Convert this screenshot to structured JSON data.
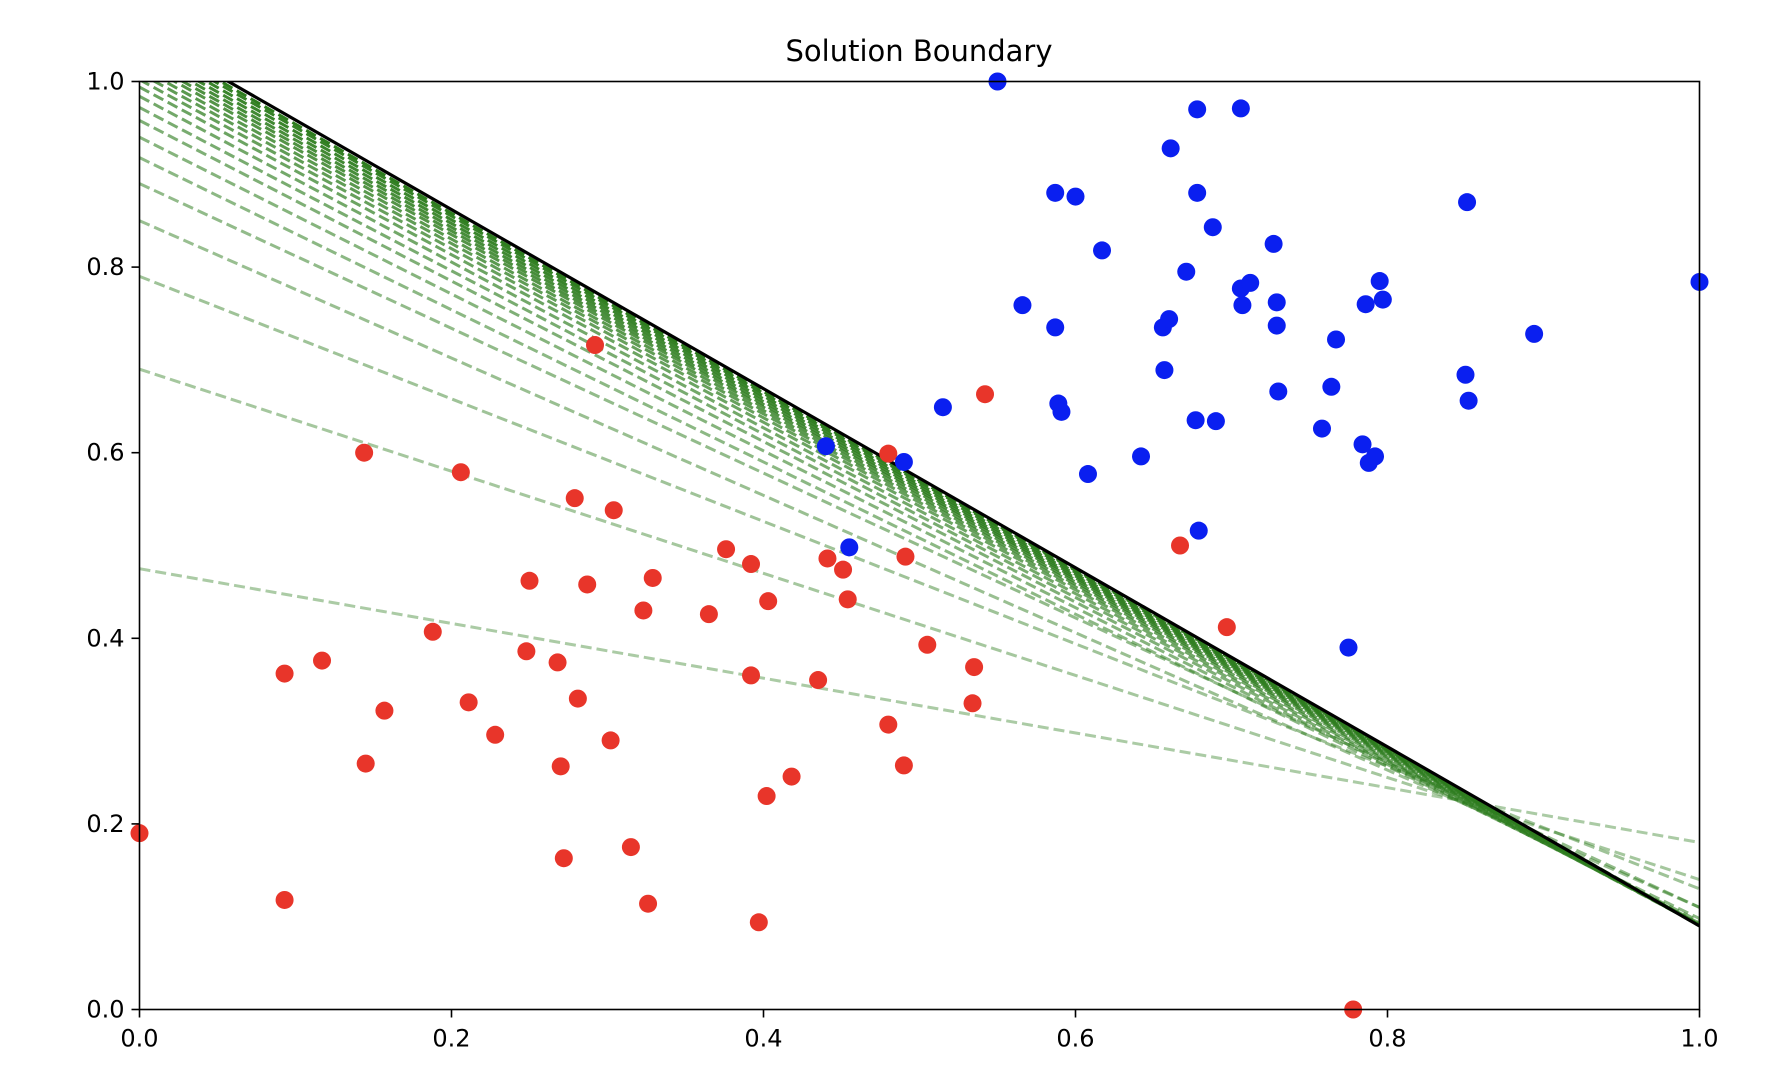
{
  "chart_data": {
    "type": "scatter",
    "title": "Solution Boundary",
    "xlabel": "",
    "ylabel": "",
    "xlim": [
      0.0,
      1.0
    ],
    "ylim": [
      0.0,
      1.0
    ],
    "grid": false,
    "x_ticks": [
      "0.0",
      "0.2",
      "0.4",
      "0.6",
      "0.8",
      "1.0"
    ],
    "y_ticks": [
      "0.0",
      "0.2",
      "0.4",
      "0.6",
      "0.8",
      "1.0"
    ],
    "colors": {
      "red_points": "#e8352a",
      "blue_points": "#0a1ff0",
      "iteration_lines": "#2e7d1f",
      "final_boundary": "#000000"
    },
    "final_boundary": {
      "intercept": 1.055,
      "slope": -0.965
    },
    "iteration_lines": [
      {
        "intercept": 0.475,
        "slope": -0.295
      },
      {
        "intercept": 0.69,
        "slope": -0.55
      },
      {
        "intercept": 0.79,
        "slope": -0.66
      },
      {
        "intercept": 0.85,
        "slope": -0.74
      },
      {
        "intercept": 0.89,
        "slope": -0.78
      },
      {
        "intercept": 0.918,
        "slope": -0.82
      },
      {
        "intercept": 0.94,
        "slope": -0.845
      },
      {
        "intercept": 0.958,
        "slope": -0.865
      },
      {
        "intercept": 0.972,
        "slope": -0.88
      },
      {
        "intercept": 0.984,
        "slope": -0.893
      },
      {
        "intercept": 0.994,
        "slope": -0.903
      },
      {
        "intercept": 1.002,
        "slope": -0.911
      },
      {
        "intercept": 1.009,
        "slope": -0.918
      },
      {
        "intercept": 1.015,
        "slope": -0.924
      },
      {
        "intercept": 1.021,
        "slope": -0.93
      },
      {
        "intercept": 1.026,
        "slope": -0.935
      },
      {
        "intercept": 1.031,
        "slope": -0.94
      },
      {
        "intercept": 1.036,
        "slope": -0.945
      },
      {
        "intercept": 1.041,
        "slope": -0.95
      },
      {
        "intercept": 1.046,
        "slope": -0.955
      },
      {
        "intercept": 1.05,
        "slope": -0.96
      }
    ],
    "series": [
      {
        "values": [
          [
            0.0,
            0.19
          ],
          [
            0.093,
            0.118
          ],
          [
            0.093,
            0.362
          ],
          [
            0.117,
            0.376
          ],
          [
            0.144,
            0.6
          ],
          [
            0.145,
            0.265
          ],
          [
            0.157,
            0.322
          ],
          [
            0.188,
            0.407
          ],
          [
            0.206,
            0.579
          ],
          [
            0.211,
            0.331
          ],
          [
            0.228,
            0.296
          ],
          [
            0.248,
            0.386
          ],
          [
            0.25,
            0.462
          ],
          [
            0.268,
            0.374
          ],
          [
            0.27,
            0.262
          ],
          [
            0.272,
            0.163
          ],
          [
            0.279,
            0.551
          ],
          [
            0.281,
            0.335
          ],
          [
            0.287,
            0.458
          ],
          [
            0.292,
            0.716
          ],
          [
            0.302,
            0.29
          ],
          [
            0.304,
            0.538
          ],
          [
            0.315,
            0.175
          ],
          [
            0.323,
            0.43
          ],
          [
            0.326,
            0.114
          ],
          [
            0.329,
            0.465
          ],
          [
            0.365,
            0.426
          ],
          [
            0.376,
            0.496
          ],
          [
            0.392,
            0.36
          ],
          [
            0.392,
            0.48
          ],
          [
            0.397,
            0.094
          ],
          [
            0.402,
            0.23
          ],
          [
            0.403,
            0.44
          ],
          [
            0.418,
            0.251
          ],
          [
            0.435,
            0.355
          ],
          [
            0.441,
            0.486
          ],
          [
            0.451,
            0.474
          ],
          [
            0.454,
            0.442
          ],
          [
            0.48,
            0.307
          ],
          [
            0.48,
            0.599
          ],
          [
            0.49,
            0.263
          ],
          [
            0.491,
            0.488
          ],
          [
            0.505,
            0.393
          ],
          [
            0.534,
            0.33
          ],
          [
            0.535,
            0.369
          ],
          [
            0.542,
            0.663
          ],
          [
            0.667,
            0.5
          ],
          [
            0.697,
            0.412
          ],
          [
            0.778,
            0.0
          ]
        ]
      },
      {
        "values": [
          [
            0.455,
            0.498
          ],
          [
            0.44,
            0.607
          ],
          [
            0.49,
            0.59
          ],
          [
            0.515,
            0.649
          ],
          [
            0.55,
            1.0
          ],
          [
            0.566,
            0.759
          ],
          [
            0.587,
            0.735
          ],
          [
            0.587,
            0.88
          ],
          [
            0.589,
            0.653
          ],
          [
            0.591,
            0.644
          ],
          [
            0.6,
            0.876
          ],
          [
            0.608,
            0.577
          ],
          [
            0.617,
            0.818
          ],
          [
            0.642,
            0.596
          ],
          [
            0.656,
            0.735
          ],
          [
            0.657,
            0.689
          ],
          [
            0.66,
            0.744
          ],
          [
            0.661,
            0.928
          ],
          [
            0.671,
            0.795
          ],
          [
            0.677,
            0.635
          ],
          [
            0.678,
            0.97
          ],
          [
            0.678,
            0.88
          ],
          [
            0.679,
            0.516
          ],
          [
            0.688,
            0.843
          ],
          [
            0.69,
            0.634
          ],
          [
            0.706,
            0.777
          ],
          [
            0.706,
            0.971
          ],
          [
            0.707,
            0.759
          ],
          [
            0.712,
            0.783
          ],
          [
            0.727,
            0.825
          ],
          [
            0.729,
            0.762
          ],
          [
            0.729,
            0.737
          ],
          [
            0.73,
            0.666
          ],
          [
            0.758,
            0.626
          ],
          [
            0.764,
            0.671
          ],
          [
            0.767,
            0.722
          ],
          [
            0.775,
            0.39
          ],
          [
            0.784,
            0.609
          ],
          [
            0.786,
            0.76
          ],
          [
            0.788,
            0.589
          ],
          [
            0.792,
            0.596
          ],
          [
            0.795,
            0.785
          ],
          [
            0.797,
            0.765
          ],
          [
            0.85,
            0.684
          ],
          [
            0.851,
            0.87
          ],
          [
            0.852,
            0.656
          ],
          [
            0.894,
            0.728
          ],
          [
            1.0,
            0.784
          ]
        ]
      }
    ]
  }
}
